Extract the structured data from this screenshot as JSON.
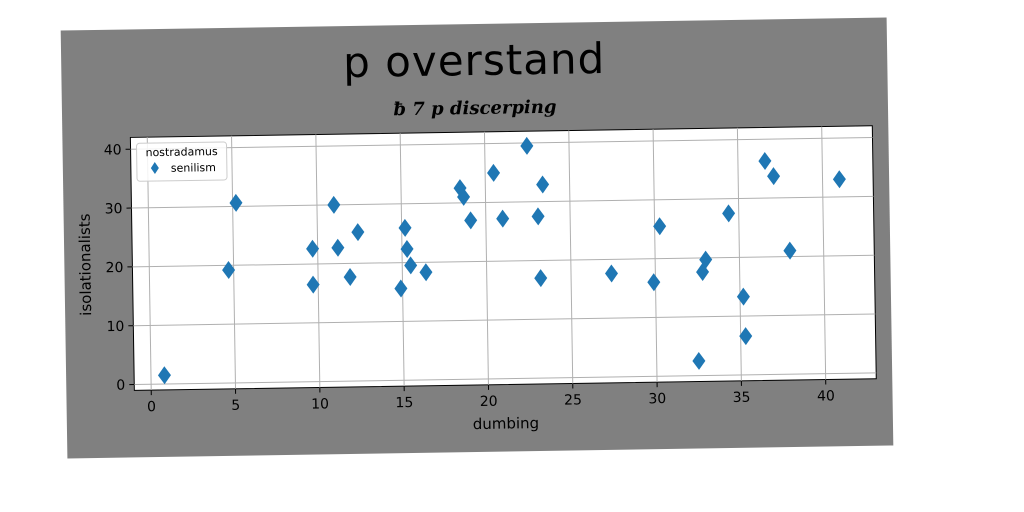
{
  "chart_data": {
    "type": "scatter",
    "title": "p overstand",
    "subtitle": "ƀ 7 p discerping",
    "xlabel": "dumbing",
    "ylabel": "isolationalists",
    "xlim": [
      -1,
      43
    ],
    "ylim": [
      -1,
      42
    ],
    "xticks": [
      0,
      5,
      10,
      15,
      20,
      25,
      30,
      35,
      40
    ],
    "yticks": [
      0,
      10,
      20,
      30,
      40
    ],
    "grid": true,
    "legend": {
      "title": "nostradamus",
      "placement": "top-left"
    },
    "series": [
      {
        "name": "senilism",
        "color": "#1f77b4",
        "marker": "diamond",
        "points": [
          [
            0.8,
            1.5
          ],
          [
            4.7,
            19.2
          ],
          [
            5.2,
            30.6
          ],
          [
            9.7,
            16.5
          ],
          [
            9.7,
            22.6
          ],
          [
            11.0,
            30.0
          ],
          [
            11.2,
            22.7
          ],
          [
            11.9,
            17.7
          ],
          [
            12.4,
            25.3
          ],
          [
            14.9,
            15.6
          ],
          [
            15.2,
            25.9
          ],
          [
            15.3,
            22.3
          ],
          [
            15.5,
            19.5
          ],
          [
            16.4,
            18.3
          ],
          [
            18.5,
            32.5
          ],
          [
            18.7,
            31.0
          ],
          [
            19.1,
            27.0
          ],
          [
            20.5,
            35.0
          ],
          [
            21.0,
            27.2
          ],
          [
            22.5,
            39.5
          ],
          [
            23.1,
            27.5
          ],
          [
            23.2,
            17.0
          ],
          [
            23.4,
            32.9
          ],
          [
            27.4,
            17.6
          ],
          [
            29.9,
            16.0
          ],
          [
            30.3,
            25.5
          ],
          [
            32.5,
            2.5
          ],
          [
            32.8,
            17.6
          ],
          [
            33.0,
            19.7
          ],
          [
            34.4,
            27.5
          ],
          [
            35.2,
            13.3
          ],
          [
            35.3,
            6.6
          ],
          [
            36.6,
            36.3
          ],
          [
            37.1,
            33.7
          ],
          [
            38.0,
            21.0
          ],
          [
            41.0,
            33.0
          ]
        ]
      }
    ]
  }
}
